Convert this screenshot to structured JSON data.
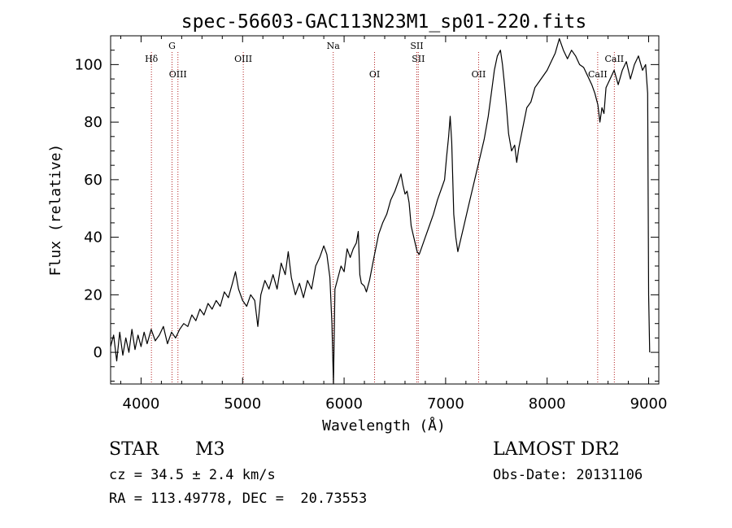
{
  "chart_data": {
    "type": "line",
    "title": "spec-56603-GAC113N23M1_sp01-220.fits",
    "xlabel": "Wavelength (Å)",
    "ylabel": "Flux (relative)",
    "xlim": [
      3700,
      9100
    ],
    "ylim": [
      -11,
      110
    ],
    "x_ticks": [
      4000,
      5000,
      6000,
      7000,
      8000,
      9000
    ],
    "y_ticks": [
      0,
      20,
      40,
      60,
      80,
      100
    ],
    "grid": false,
    "series": [
      {
        "color": "#000000",
        "points": [
          [
            3700,
            2
          ],
          [
            3730,
            6
          ],
          [
            3760,
            -3
          ],
          [
            3790,
            7
          ],
          [
            3820,
            -1
          ],
          [
            3850,
            5
          ],
          [
            3880,
            0
          ],
          [
            3910,
            8
          ],
          [
            3940,
            1
          ],
          [
            3970,
            6
          ],
          [
            4000,
            2
          ],
          [
            4030,
            7
          ],
          [
            4060,
            3
          ],
          [
            4100,
            8
          ],
          [
            4140,
            4
          ],
          [
            4180,
            6
          ],
          [
            4220,
            9
          ],
          [
            4260,
            3
          ],
          [
            4300,
            7
          ],
          [
            4340,
            5
          ],
          [
            4380,
            8
          ],
          [
            4420,
            10
          ],
          [
            4460,
            9
          ],
          [
            4500,
            13
          ],
          [
            4540,
            11
          ],
          [
            4580,
            15
          ],
          [
            4620,
            13
          ],
          [
            4660,
            17
          ],
          [
            4700,
            15
          ],
          [
            4740,
            18
          ],
          [
            4780,
            16
          ],
          [
            4820,
            21
          ],
          [
            4860,
            19
          ],
          [
            4900,
            24
          ],
          [
            4930,
            28
          ],
          [
            4960,
            22
          ],
          [
            5000,
            18
          ],
          [
            5040,
            16
          ],
          [
            5080,
            20
          ],
          [
            5120,
            18
          ],
          [
            5150,
            9
          ],
          [
            5180,
            20
          ],
          [
            5220,
            25
          ],
          [
            5260,
            22
          ],
          [
            5300,
            27
          ],
          [
            5340,
            22
          ],
          [
            5380,
            31
          ],
          [
            5420,
            27
          ],
          [
            5450,
            35
          ],
          [
            5480,
            26
          ],
          [
            5520,
            20
          ],
          [
            5560,
            24
          ],
          [
            5600,
            19
          ],
          [
            5640,
            25
          ],
          [
            5680,
            22
          ],
          [
            5720,
            30
          ],
          [
            5760,
            33
          ],
          [
            5800,
            37
          ],
          [
            5830,
            34
          ],
          [
            5860,
            26
          ],
          [
            5880,
            10
          ],
          [
            5895,
            -12
          ],
          [
            5910,
            22
          ],
          [
            5940,
            26
          ],
          [
            5970,
            30
          ],
          [
            6000,
            28
          ],
          [
            6030,
            36
          ],
          [
            6060,
            33
          ],
          [
            6090,
            36
          ],
          [
            6120,
            38
          ],
          [
            6140,
            42
          ],
          [
            6155,
            27
          ],
          [
            6170,
            24
          ],
          [
            6200,
            23
          ],
          [
            6220,
            21
          ],
          [
            6250,
            25
          ],
          [
            6300,
            34
          ],
          [
            6340,
            41
          ],
          [
            6380,
            45
          ],
          [
            6420,
            48
          ],
          [
            6460,
            53
          ],
          [
            6500,
            56
          ],
          [
            6540,
            60
          ],
          [
            6560,
            62
          ],
          [
            6580,
            58
          ],
          [
            6600,
            55
          ],
          [
            6620,
            56
          ],
          [
            6640,
            52
          ],
          [
            6660,
            44
          ],
          [
            6680,
            41
          ],
          [
            6700,
            38
          ],
          [
            6720,
            35
          ],
          [
            6740,
            34
          ],
          [
            6760,
            36
          ],
          [
            6800,
            40
          ],
          [
            6840,
            44
          ],
          [
            6880,
            48
          ],
          [
            6920,
            53
          ],
          [
            6960,
            57
          ],
          [
            6990,
            60
          ],
          [
            7010,
            68
          ],
          [
            7030,
            75
          ],
          [
            7045,
            82
          ],
          [
            7060,
            73
          ],
          [
            7080,
            48
          ],
          [
            7100,
            40
          ],
          [
            7120,
            35
          ],
          [
            7140,
            38
          ],
          [
            7180,
            44
          ],
          [
            7220,
            50
          ],
          [
            7260,
            56
          ],
          [
            7300,
            62
          ],
          [
            7340,
            68
          ],
          [
            7380,
            74
          ],
          [
            7420,
            82
          ],
          [
            7450,
            90
          ],
          [
            7480,
            98
          ],
          [
            7510,
            103
          ],
          [
            7540,
            105
          ],
          [
            7560,
            100
          ],
          [
            7580,
            93
          ],
          [
            7600,
            85
          ],
          [
            7620,
            76
          ],
          [
            7650,
            70
          ],
          [
            7680,
            72
          ],
          [
            7700,
            66
          ],
          [
            7720,
            71
          ],
          [
            7760,
            78
          ],
          [
            7800,
            85
          ],
          [
            7840,
            87
          ],
          [
            7880,
            92
          ],
          [
            7920,
            94
          ],
          [
            7960,
            96
          ],
          [
            8000,
            98
          ],
          [
            8040,
            101
          ],
          [
            8080,
            104
          ],
          [
            8120,
            109
          ],
          [
            8160,
            105
          ],
          [
            8200,
            102
          ],
          [
            8240,
            105
          ],
          [
            8280,
            103
          ],
          [
            8320,
            100
          ],
          [
            8360,
            99
          ],
          [
            8400,
            96
          ],
          [
            8440,
            93
          ],
          [
            8470,
            90
          ],
          [
            8500,
            86
          ],
          [
            8520,
            80
          ],
          [
            8540,
            85
          ],
          [
            8560,
            83
          ],
          [
            8580,
            92
          ],
          [
            8620,
            95
          ],
          [
            8660,
            98
          ],
          [
            8700,
            93
          ],
          [
            8740,
            98
          ],
          [
            8780,
            101
          ],
          [
            8820,
            95
          ],
          [
            8860,
            100
          ],
          [
            8900,
            103
          ],
          [
            8940,
            98
          ],
          [
            8970,
            100
          ],
          [
            8990,
            90
          ],
          [
            9000,
            20
          ],
          [
            9010,
            0
          ]
        ]
      }
    ],
    "line_markers": [
      {
        "name": "Hδ",
        "wavelength": 4102,
        "row": 1
      },
      {
        "name": "G",
        "wavelength": 4305,
        "row": 0
      },
      {
        "name": "OIII",
        "wavelength": 4363,
        "row": 2
      },
      {
        "name": "OIII",
        "wavelength": 5007,
        "row": 1
      },
      {
        "name": "Na",
        "wavelength": 5893,
        "row": 0
      },
      {
        "name": "OI",
        "wavelength": 6300,
        "row": 2
      },
      {
        "name": "SII",
        "wavelength": 6716,
        "row": 0
      },
      {
        "name": "SII",
        "wavelength": 6731,
        "row": 1
      },
      {
        "name": "OII",
        "wavelength": 7325,
        "row": 2
      },
      {
        "name": "CaII",
        "wavelength": 8498,
        "row": 2
      },
      {
        "name": "CaII",
        "wavelength": 8662,
        "row": 1
      }
    ]
  },
  "info": {
    "class": "STAR",
    "subclass": "M3",
    "survey": "LAMOST DR2",
    "cz": "cz = 34.5 ± 2.4 km/s",
    "obs_date": "Obs-Date: 20131106",
    "radec": "RA = 113.49778, DEC =  20.73553"
  },
  "colors": {
    "spectrum": "#000000",
    "marker": "#b22222",
    "axis": "#000000"
  }
}
